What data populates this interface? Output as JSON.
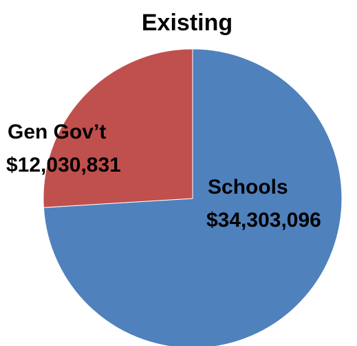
{
  "chart_data": {
    "type": "pie",
    "title": "Existing",
    "slices": [
      {
        "label": "Schools",
        "value_text": "$34,303,096",
        "value": 34303096,
        "color": "#4F81BD"
      },
      {
        "label": "Gen Gov’t",
        "value_text": "$12,030,831",
        "value": 12030831,
        "color": "#C0504D"
      }
    ],
    "legend": "none",
    "start_angle": "12 o'clock",
    "direction": "clockwise"
  }
}
